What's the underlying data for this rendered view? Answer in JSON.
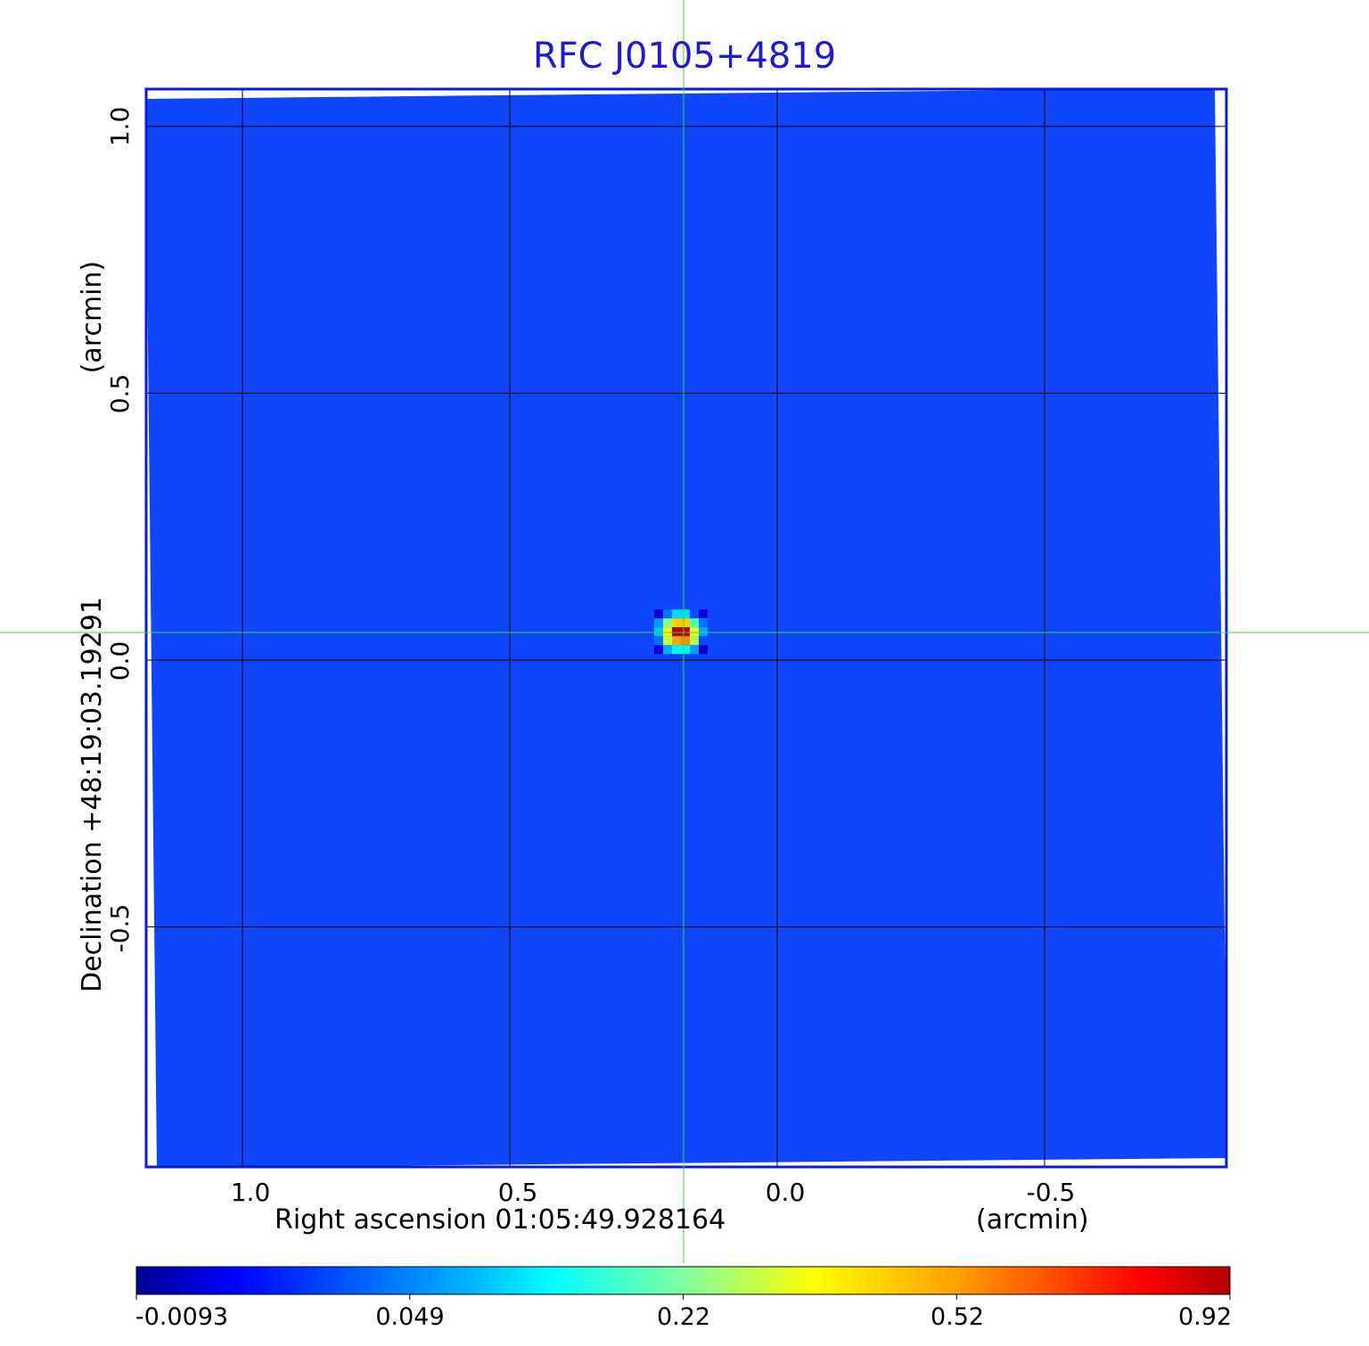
{
  "chart_data": {
    "type": "heatmap",
    "title": "RFC J0105+4819",
    "xlabel": "Right ascension  01:05:49.928164",
    "xunit": "(arcmin)",
    "ylabel": "Declination  +48:19:03.19291",
    "yunit": "(arcmin)",
    "xticks": [
      "1.0",
      "0.5",
      "0.0",
      "-0.5"
    ],
    "xtick_values": [
      1.0,
      0.5,
      0.0,
      -0.5
    ],
    "yticks": [
      "1.0",
      "0.5",
      "0.0",
      "-0.5"
    ],
    "ytick_values": [
      1.0,
      0.5,
      0.0,
      -0.5
    ],
    "xlim": [
      1.18,
      -0.84
    ],
    "ylim": [
      -0.95,
      1.07
    ],
    "grid": true,
    "crosshair": {
      "x": 0.18,
      "y": 0.053
    },
    "colorbar": {
      "colormap": "jet",
      "ticks": [
        "-0.0093",
        "0.049",
        "0.22",
        "0.52",
        "0.92"
      ],
      "tick_values": [
        -0.0093,
        0.049,
        0.22,
        0.52,
        0.92
      ],
      "range": [
        -0.0093,
        0.92
      ]
    },
    "background_level": 0.0,
    "source_peak": {
      "note_grid_rows": [
        [
          0.0,
          0.04,
          0.1,
          0.1,
          0.03,
          0.0
        ],
        [
          0.05,
          0.22,
          0.45,
          0.45,
          0.18,
          0.04
        ],
        [
          0.08,
          0.4,
          0.92,
          0.9,
          0.35,
          0.06
        ],
        [
          0.04,
          0.3,
          0.5,
          0.55,
          0.28,
          0.03
        ],
        [
          0.0,
          0.06,
          0.12,
          0.12,
          0.05,
          -0.005
        ]
      ]
    }
  },
  "colors": {
    "title": "#1a1ad8",
    "frame": "#0a1ae0",
    "crosshair": "#33dd33",
    "background": "#0f45fb"
  }
}
